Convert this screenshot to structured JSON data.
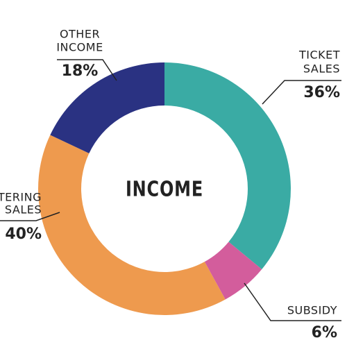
{
  "chart_data": {
    "type": "donut",
    "title": "INCOME",
    "categories": [
      [
        "TICKET",
        "SALES"
      ],
      [
        "SUBSIDY"
      ],
      [
        "CATERING",
        "SALES"
      ],
      [
        "OTHER",
        "INCOME"
      ]
    ],
    "values": [
      36,
      6,
      40,
      18
    ],
    "value_labels": [
      "36%",
      "6%",
      "40%",
      "18%"
    ],
    "colors": [
      "#3aaba4",
      "#d35d9c",
      "#ee9a4e",
      "#2a3282"
    ]
  }
}
